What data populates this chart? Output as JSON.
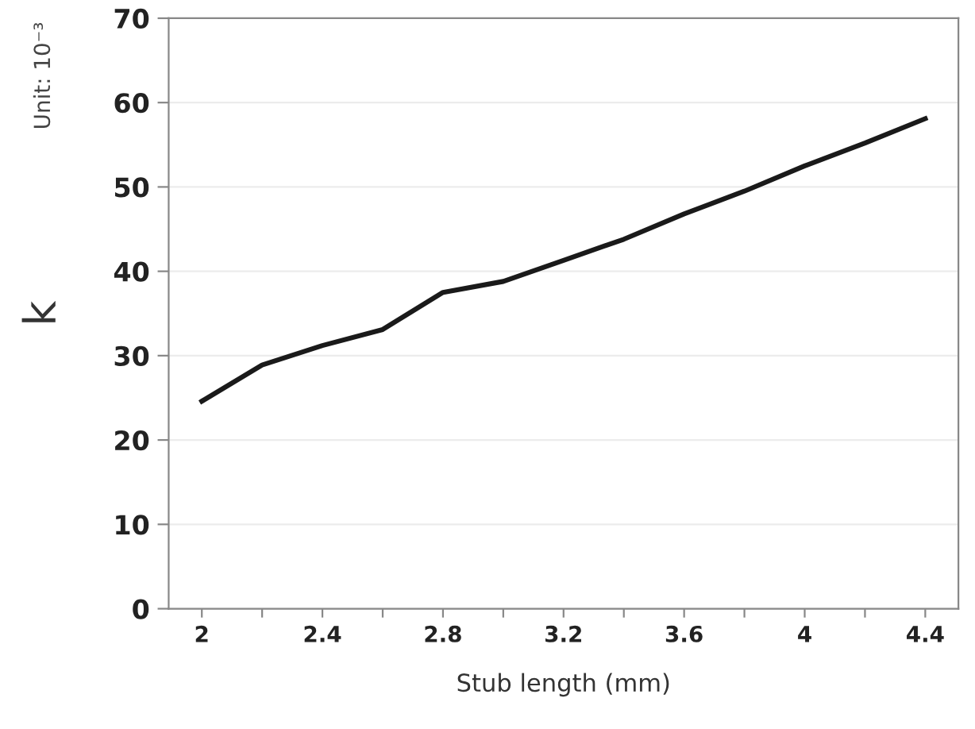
{
  "chart_data": {
    "type": "line",
    "xlabel": "Stub length (mm)",
    "ylabel": "k",
    "annotations": [
      "Unit: 10⁻³"
    ],
    "x": [
      2,
      2.2,
      2.4,
      2.6,
      2.8,
      3.0,
      3.2,
      3.4,
      3.6,
      3.8,
      4.0,
      4.2,
      4.4
    ],
    "series": [
      {
        "color": "#1a1a1a",
        "values": [
          24.6,
          28.9,
          31.2,
          33.1,
          37.5,
          38.8,
          41.3,
          43.8,
          46.8,
          49.5,
          52.5,
          55.2,
          58.1
        ]
      }
    ],
    "xlim": [
      1.89,
      4.51
    ],
    "ylim": [
      0,
      70
    ],
    "xticks": [
      2,
      {
        "value": 2.2,
        "label": null
      },
      2.4,
      {
        "value": 2.6,
        "label": null
      },
      2.8,
      {
        "value": 3.0,
        "label": null
      },
      3.2,
      {
        "value": 3.4,
        "label": null
      },
      3.6,
      {
        "value": 3.8,
        "label": null
      },
      4,
      {
        "value": 4.2,
        "label": null
      },
      4.4
    ],
    "yticks": [
      0,
      10,
      20,
      30,
      40,
      50,
      60,
      70
    ],
    "grid": "y",
    "legend": false,
    "marker": "none",
    "line_style": "solid"
  }
}
